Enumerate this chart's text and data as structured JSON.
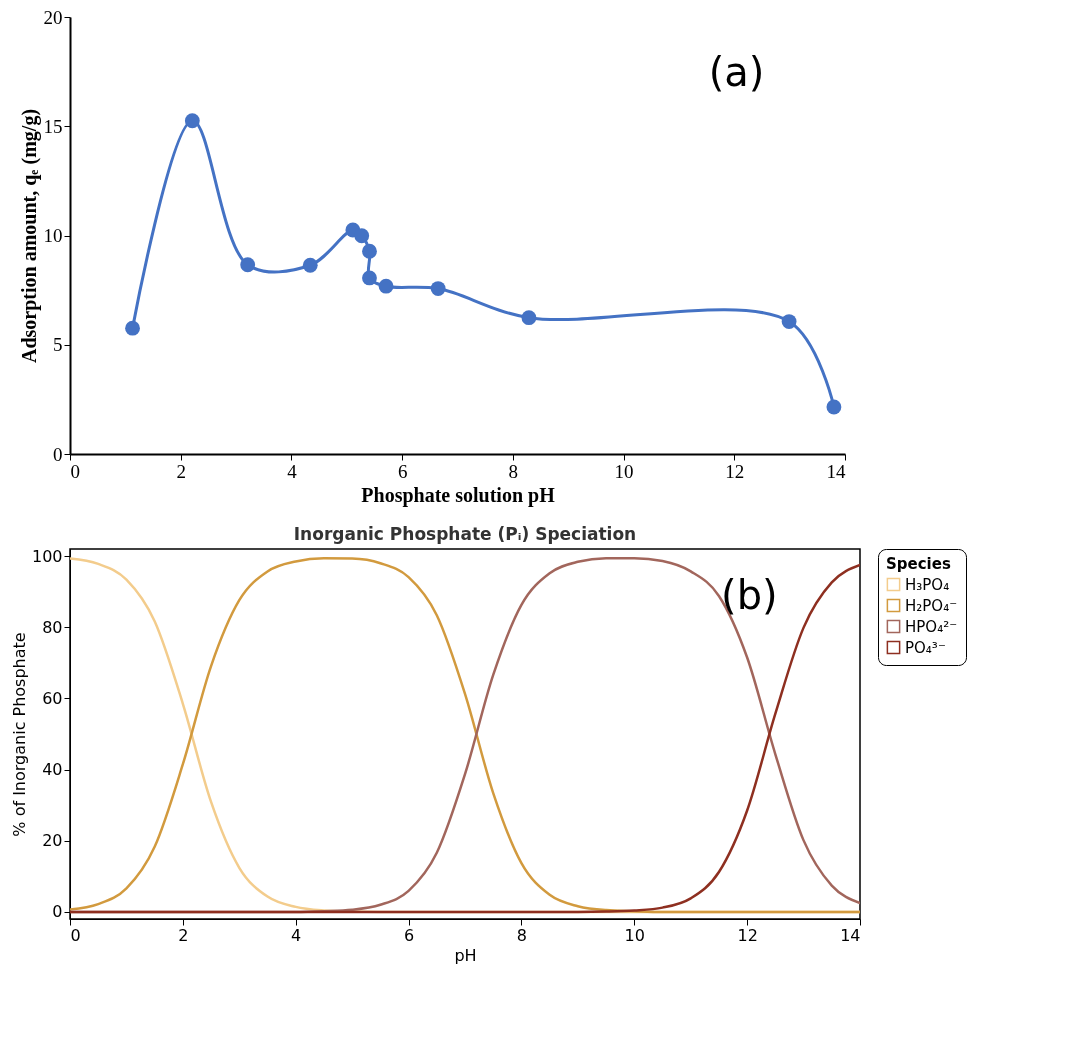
{
  "chart_data": [
    {
      "type": "line",
      "xlabel": "Phosphate solution pH",
      "ylabel": "Adsorption amount, qₑ (mg/g)",
      "annotations": [
        "(a)"
      ],
      "xlim": [
        0,
        14
      ],
      "ylim": [
        0,
        20
      ],
      "xticks": [
        0,
        2,
        4,
        6,
        8,
        10,
        12,
        14
      ],
      "yticks": [
        0,
        5,
        10,
        15,
        20
      ],
      "grid": false,
      "legend": false,
      "marker": "circle",
      "line_style": "solid",
      "series": [
        {
          "color": "#4472c4",
          "x": [
            1.13,
            2.21,
            3.21,
            4.34,
            5.11,
            5.27,
            5.41,
            5.41,
            5.71,
            6.65,
            8.29,
            12.99,
            13.8
          ],
          "values": [
            5.76,
            15.25,
            8.66,
            8.64,
            10.25,
            9.99,
            9.28,
            8.06,
            7.68,
            7.57,
            6.24,
            6.06,
            2.15
          ]
        }
      ]
    },
    {
      "type": "line",
      "title": "Inorganic Phosphate (Pᵢ) Speciation",
      "xlabel": "pH",
      "ylabel": "% of Inorganic Phosphate",
      "annotations": [
        "(b)"
      ],
      "legend_title": "Species",
      "xlim": [
        0,
        14
      ],
      "ylim": [
        -2,
        102
      ],
      "xticks": [
        0,
        2,
        4,
        6,
        8,
        10,
        12,
        14
      ],
      "yticks": [
        0,
        20,
        40,
        60,
        80,
        100
      ],
      "grid": false,
      "legend": "right",
      "marker": "none",
      "line_style": "solid",
      "x": [
        0,
        0.5,
        1,
        1.5,
        2,
        2.5,
        3,
        3.5,
        4,
        4.5,
        5,
        5.5,
        6,
        6.5,
        7,
        7.5,
        8,
        8.5,
        9,
        9.5,
        10,
        10.5,
        11,
        11.5,
        12,
        12.5,
        13,
        13.5,
        14
      ],
      "series": [
        {
          "name": "H₃PO₄",
          "color": "#f3cc8c",
          "values": [
            99.3,
            97.8,
            93.4,
            81.7,
            58.5,
            30.9,
            12.4,
            4.3,
            1.4,
            0.4,
            0.1,
            0,
            0,
            0,
            0,
            0,
            0,
            0,
            0,
            0,
            0,
            0,
            0,
            0,
            0,
            0,
            0,
            0,
            0
          ]
        },
        {
          "name": "H₂PO₄⁻",
          "color": "#d29a3e",
          "values": [
            0.7,
            2.2,
            6.6,
            18.3,
            41.5,
            69.1,
            87.6,
            95.7,
            98.5,
            99.4,
            99.3,
            98.0,
            94.1,
            83.4,
            61.3,
            33.4,
            13.7,
            4.8,
            1.6,
            0.5,
            0.2,
            0,
            0,
            0,
            0,
            0,
            0,
            0,
            0
          ]
        },
        {
          "name": "HPO₄²⁻",
          "color": "#a2665c",
          "values": [
            0,
            0,
            0,
            0,
            0,
            0,
            0,
            0,
            0,
            0.2,
            0.6,
            2.0,
            5.9,
            16.6,
            38.7,
            66.6,
            86.3,
            95.2,
            98.4,
            99.4,
            99.4,
            98.6,
            95.7,
            88.8,
            71.5,
            44.3,
            20.1,
            7.4,
            2.5
          ]
        },
        {
          "name": "PO₄³⁻",
          "color": "#8e2f20",
          "values": [
            0,
            0,
            0,
            0,
            0,
            0,
            0,
            0,
            0,
            0,
            0,
            0,
            0,
            0,
            0,
            0,
            0,
            0,
            0,
            0.1,
            0.4,
            1.2,
            3.8,
            11.2,
            28.5,
            55.7,
            79.9,
            92.6,
            97.5
          ]
        }
      ]
    }
  ]
}
